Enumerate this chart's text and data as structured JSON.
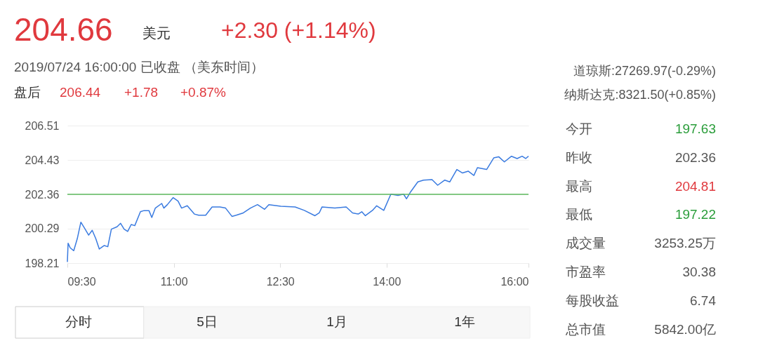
{
  "chart_data": {
    "type": "line",
    "x": [
      9.5,
      9.51,
      9.54,
      9.59,
      9.64,
      9.69,
      9.74,
      9.8,
      9.85,
      9.9,
      9.95,
      10.02,
      10.07,
      10.12,
      10.2,
      10.25,
      10.3,
      10.35,
      10.4,
      10.45,
      10.53,
      10.58,
      10.65,
      10.69,
      10.74,
      10.83,
      10.86,
      10.91,
      10.99,
      11.06,
      11.11,
      11.19,
      11.29,
      11.35,
      11.45,
      11.54,
      11.65,
      11.73,
      11.82,
      11.88,
      11.98,
      12.08,
      12.18,
      12.28,
      12.34,
      12.51,
      12.71,
      12.84,
      12.99,
      13.05,
      13.09,
      13.27,
      13.43,
      13.52,
      13.6,
      13.65,
      13.7,
      13.8,
      13.86,
      13.96,
      14.06,
      14.16,
      14.24,
      14.28,
      14.34,
      14.44,
      14.52,
      14.64,
      14.72,
      14.82,
      14.89,
      14.99,
      15.07,
      15.15,
      15.23,
      15.28,
      15.41,
      15.51,
      15.58,
      15.66,
      15.76,
      15.84,
      15.91,
      15.96,
      16.0
    ],
    "series": [
      {
        "color": "#3a7be0",
        "values": [
          198.28,
          199.41,
          199.13,
          198.96,
          199.69,
          200.68,
          200.33,
          199.9,
          200.19,
          199.69,
          199.06,
          199.27,
          199.2,
          200.26,
          200.4,
          200.61,
          200.26,
          200.12,
          200.54,
          200.47,
          201.31,
          201.38,
          201.38,
          200.96,
          201.53,
          201.81,
          201.53,
          201.74,
          202.16,
          201.95,
          201.53,
          201.67,
          201.17,
          201.1,
          201.1,
          201.6,
          201.6,
          201.53,
          201.03,
          201.1,
          201.24,
          201.53,
          201.74,
          201.46,
          201.74,
          201.64,
          201.6,
          201.39,
          201.07,
          201.24,
          201.6,
          201.53,
          201.6,
          201.24,
          201.17,
          201.31,
          201.07,
          201.39,
          201.67,
          201.39,
          202.37,
          202.3,
          202.37,
          202.09,
          202.52,
          203.11,
          203.22,
          203.25,
          202.91,
          203.22,
          203.11,
          203.86,
          203.65,
          203.76,
          203.5,
          203.97,
          203.86,
          204.56,
          204.63,
          204.32,
          204.66,
          204.52,
          204.66,
          204.52,
          204.66
        ]
      }
    ],
    "xlim": [
      9.5,
      16.0
    ],
    "xticks": [
      {
        "value": 9.5,
        "label": "09:30"
      },
      {
        "value": 11,
        "label": "11:00"
      },
      {
        "value": 12.5,
        "label": "12:30"
      },
      {
        "value": 14,
        "label": "14:00"
      },
      {
        "value": 16,
        "label": "16:00"
      }
    ],
    "ylim": [
      198.21,
      206.51
    ],
    "yticks": [
      198.21,
      200.29,
      202.36,
      204.43,
      206.51
    ],
    "grid": "y",
    "legend": false,
    "ref_lines": [
      {
        "axis": "y",
        "value": 202.36,
        "color": "#5cb85c"
      }
    ],
    "annotations": [
      "204.66",
      "美元",
      "+2.30 (+1.14%)",
      "2019/07/24 16:00:00   已收盘   （美东时间）",
      "盘后",
      "206.44",
      "+1.78",
      "+0.87%",
      "道琼斯:27269.97(-0.29%)",
      "纳斯达克:8321.50(+0.85%)",
      "今开",
      "197.63",
      "昨收",
      "202.36",
      "最高",
      "204.81",
      "最低",
      "197.22",
      "成交量",
      "3253.25万",
      "市盈率",
      "30.38",
      "每股收益",
      "6.74",
      "总市值",
      "5842.00亿",
      "分时",
      "5日",
      "1月",
      "1年"
    ]
  }
}
